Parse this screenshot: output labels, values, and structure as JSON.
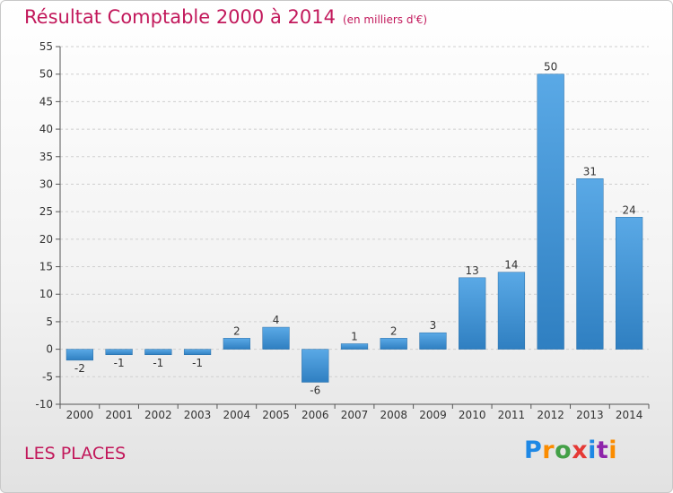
{
  "header": {
    "title": "Résultat Comptable 2000 à 2014",
    "subtitle": "(en milliers d'€)"
  },
  "footer": {
    "place": "LES PLACES",
    "logo_letters": [
      "P",
      "r",
      "o",
      "x",
      "i",
      "t",
      "i"
    ]
  },
  "colors": {
    "title": "#c2185b",
    "bar_top": "#5aa9e6",
    "bar_bottom": "#2f7fc1",
    "grid": "#cfcfcf"
  },
  "chart_data": {
    "type": "bar",
    "title": "Résultat Comptable 2000 à 2014",
    "subtitle": "(en milliers d'€)",
    "categories": [
      "2000",
      "2001",
      "2002",
      "2003",
      "2004",
      "2005",
      "2006",
      "2007",
      "2008",
      "2009",
      "2010",
      "2011",
      "2012",
      "2013",
      "2014"
    ],
    "values": [
      -2,
      -1,
      -1,
      -1,
      2,
      4,
      -6,
      1,
      2,
      3,
      13,
      14,
      50,
      31,
      24
    ],
    "data_labels": [
      "-2",
      "-1",
      "-1",
      "-1",
      "2",
      "4",
      "-6",
      "1",
      "2",
      "3",
      "13",
      "14",
      "50",
      "31",
      "24"
    ],
    "ylim": [
      -10,
      55
    ],
    "yticks": [
      -10,
      -5,
      0,
      5,
      10,
      15,
      20,
      25,
      30,
      35,
      40,
      45,
      50,
      55
    ],
    "grid": true,
    "legend": "none",
    "xlabel": "",
    "ylabel": ""
  }
}
